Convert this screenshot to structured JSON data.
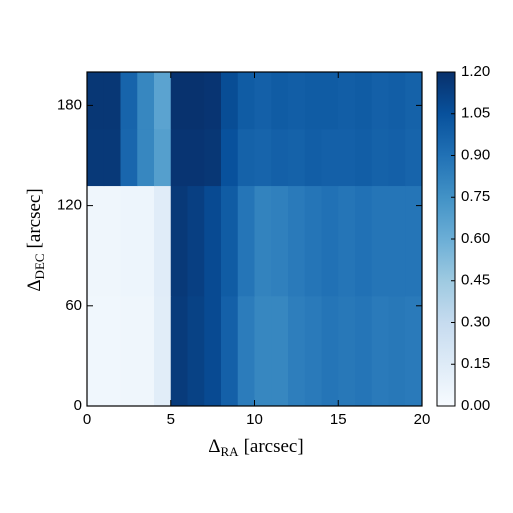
{
  "chart_data": {
    "type": "heatmap",
    "xlabel": {
      "symbol": "Δ",
      "subscript": "RA",
      "unit": "[arcsec]"
    },
    "ylabel": {
      "symbol": "Δ",
      "subscript": "DEC",
      "unit": "[arcsec]"
    },
    "x_bins": [
      0,
      1,
      2,
      3,
      4,
      5,
      6,
      7,
      8,
      9,
      10,
      11,
      12,
      13,
      14,
      15,
      16,
      17,
      18,
      19,
      20
    ],
    "y_bins": [
      0,
      66,
      132,
      166,
      200
    ],
    "values": [
      [
        0.04,
        0.04,
        0.05,
        0.05,
        0.13,
        1.15,
        1.12,
        1.08,
        0.98,
        0.85,
        0.8,
        0.8,
        0.84,
        0.86,
        0.88,
        0.87,
        0.88,
        0.86,
        0.87,
        0.86
      ],
      [
        0.05,
        0.05,
        0.06,
        0.06,
        0.14,
        1.16,
        1.13,
        1.08,
        1.0,
        0.88,
        0.82,
        0.83,
        0.86,
        0.88,
        0.9,
        0.88,
        0.9,
        0.88,
        0.88,
        0.88
      ],
      [
        1.16,
        1.16,
        0.95,
        0.8,
        0.68,
        1.18,
        1.18,
        1.17,
        1.05,
        0.97,
        0.96,
        0.98,
        0.97,
        0.99,
        0.98,
        0.98,
        0.99,
        0.97,
        0.98,
        0.96
      ],
      [
        1.17,
        1.17,
        0.96,
        0.8,
        0.66,
        1.19,
        1.19,
        1.18,
        1.07,
        1.0,
        0.98,
        1.0,
        0.99,
        1.0,
        1.0,
        0.99,
        1.0,
        0.98,
        0.99,
        0.97
      ]
    ],
    "xlim": [
      0,
      20
    ],
    "xticks": [
      0,
      5,
      10,
      15,
      20
    ],
    "ylim": [
      0,
      200
    ],
    "yticks": [
      0,
      60,
      120,
      180
    ],
    "clim": [
      0,
      1.2
    ],
    "colormap": [
      "#f7fbff",
      "#deebf7",
      "#c6dbef",
      "#9ecae1",
      "#6baed6",
      "#4292c6",
      "#2171b5",
      "#08519c",
      "#08306b"
    ],
    "cticks": [
      {
        "value": 0,
        "label": "0.00"
      },
      {
        "value": 0.15,
        "label": "0.15"
      },
      {
        "value": 0.3,
        "label": "0.30"
      },
      {
        "value": 0.45,
        "label": "0.45"
      },
      {
        "value": 0.6,
        "label": "0.60"
      },
      {
        "value": 0.75,
        "label": "0.75"
      },
      {
        "value": 0.9,
        "label": "0.90"
      },
      {
        "value": 1.05,
        "label": "1.05"
      },
      {
        "value": 1.2,
        "label": "1.20"
      }
    ]
  }
}
